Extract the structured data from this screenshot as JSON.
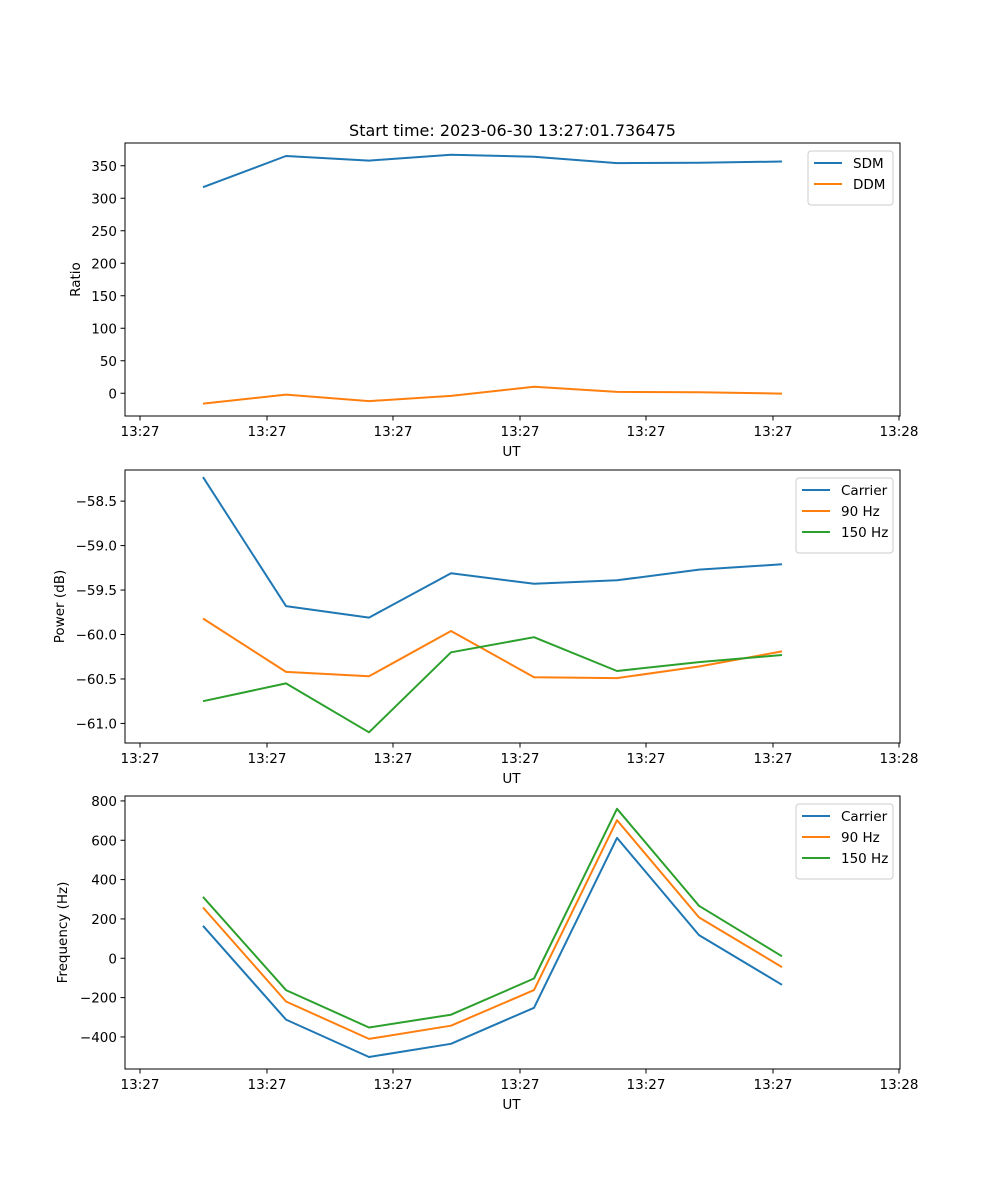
{
  "figure": {
    "title": "Start time: 2023-06-30 13:27:01.736475"
  },
  "chart_data": [
    {
      "type": "line",
      "title": "Start time: 2023-06-30 13:27:01.736475",
      "xlabel": "UT",
      "ylabel": "Ratio",
      "x_tick_labels": [
        "13:27",
        "13:27",
        "13:27",
        "13:27",
        "13:27",
        "13:27",
        "13:28"
      ],
      "y_ticks": [
        0,
        50,
        100,
        150,
        200,
        250,
        300,
        350
      ],
      "y_tick_labels": [
        "0",
        "50",
        "100",
        "150",
        "200",
        "250",
        "300",
        "350"
      ],
      "ylim": [
        -35,
        385
      ],
      "grid": false,
      "legend_position": "top-right",
      "series": [
        {
          "name": "SDM",
          "color": "#1f77b4",
          "values": [
            317,
            365,
            358,
            367,
            364,
            354,
            354.5,
            356.5
          ]
        },
        {
          "name": "DDM",
          "color": "#ff7f0e",
          "values": [
            -16,
            -2,
            -12,
            -4,
            10,
            2,
            1.5,
            -0.5
          ]
        }
      ]
    },
    {
      "type": "line",
      "title": "",
      "xlabel": "UT",
      "ylabel": "Power (dB)",
      "x_tick_labels": [
        "13:27",
        "13:27",
        "13:27",
        "13:27",
        "13:27",
        "13:27",
        "13:28"
      ],
      "y_ticks": [
        -61.0,
        -60.5,
        -60.0,
        -59.5,
        -59.0,
        -58.5
      ],
      "y_tick_labels": [
        "−61.0",
        "−60.5",
        "−60.0",
        "−59.5",
        "−59.0",
        "−58.5"
      ],
      "ylim": [
        -61.22,
        -58.15
      ],
      "grid": false,
      "legend_position": "top-right",
      "series": [
        {
          "name": "Carrier",
          "color": "#1f77b4",
          "values": [
            -58.23,
            -59.68,
            -59.81,
            -59.31,
            -59.43,
            -59.39,
            -59.27,
            -59.21
          ]
        },
        {
          "name": "90 Hz",
          "color": "#ff7f0e",
          "values": [
            -59.82,
            -60.42,
            -60.47,
            -59.96,
            -60.48,
            -60.49,
            -60.36,
            -60.19
          ]
        },
        {
          "name": "150 Hz",
          "color": "#2ca02c",
          "values": [
            -60.75,
            -60.55,
            -61.1,
            -60.2,
            -60.03,
            -60.41,
            -60.31,
            -60.23
          ]
        }
      ]
    },
    {
      "type": "line",
      "title": "",
      "xlabel": "UT",
      "ylabel": "Frequency (Hz)",
      "x_tick_labels": [
        "13:27",
        "13:27",
        "13:27",
        "13:27",
        "13:27",
        "13:27",
        "13:28"
      ],
      "y_ticks": [
        -400,
        -200,
        0,
        200,
        400,
        600,
        800
      ],
      "y_tick_labels": [
        "−400",
        "−200",
        "0",
        "200",
        "400",
        "600",
        "800"
      ],
      "ylim": [
        -563,
        825
      ],
      "grid": false,
      "legend_position": "top-right",
      "series": [
        {
          "name": "Carrier",
          "color": "#1f77b4",
          "values": [
            165,
            -312,
            -502,
            -435,
            -252,
            612,
            118,
            -135
          ]
        },
        {
          "name": "90 Hz",
          "color": "#ff7f0e",
          "values": [
            258,
            -220,
            -410,
            -343,
            -162,
            702,
            208,
            -45
          ]
        },
        {
          "name": "150 Hz",
          "color": "#2ca02c",
          "values": [
            312,
            -162,
            -352,
            -287,
            -103,
            760,
            267,
            10
          ]
        }
      ]
    }
  ]
}
